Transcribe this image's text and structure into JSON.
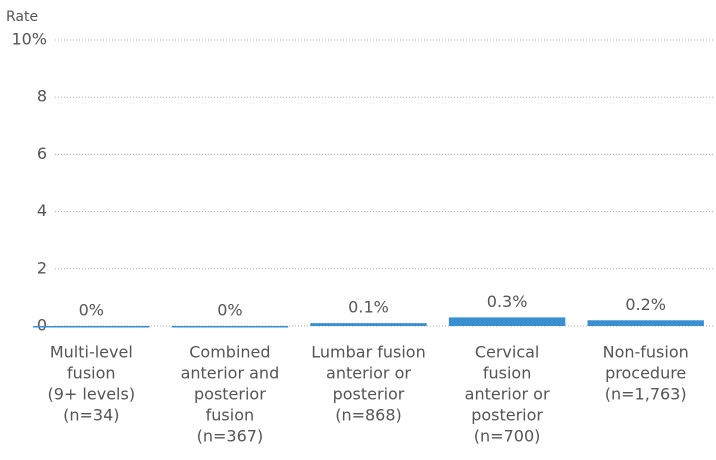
{
  "chart_data": {
    "type": "bar",
    "y_axis_label": "Rate",
    "categories": [
      [
        "Multi-level",
        "fusion",
        "(9+ levels)",
        "(n=34)"
      ],
      [
        "Combined",
        "anterior and",
        "posterior",
        "fusion",
        "(n=367)"
      ],
      [
        "Lumbar fusion",
        "anterior or",
        "posterior",
        "(n=868)"
      ],
      [
        "Cervical",
        "fusion",
        "anterior or",
        "posterior",
        "(n=700)"
      ],
      [
        "Non-fusion",
        "procedure",
        "(n=1,763)"
      ]
    ],
    "values": [
      0,
      0,
      0.1,
      0.3,
      0.2
    ],
    "value_labels": [
      "0%",
      "0%",
      "0.1%",
      "0.3%",
      "0.2%"
    ],
    "color": "#3a8fd0",
    "ylim": [
      0,
      10
    ],
    "yticks": [
      0,
      2,
      4,
      6,
      8,
      {
        "value": 10,
        "label": "10%"
      }
    ],
    "grid": true
  }
}
